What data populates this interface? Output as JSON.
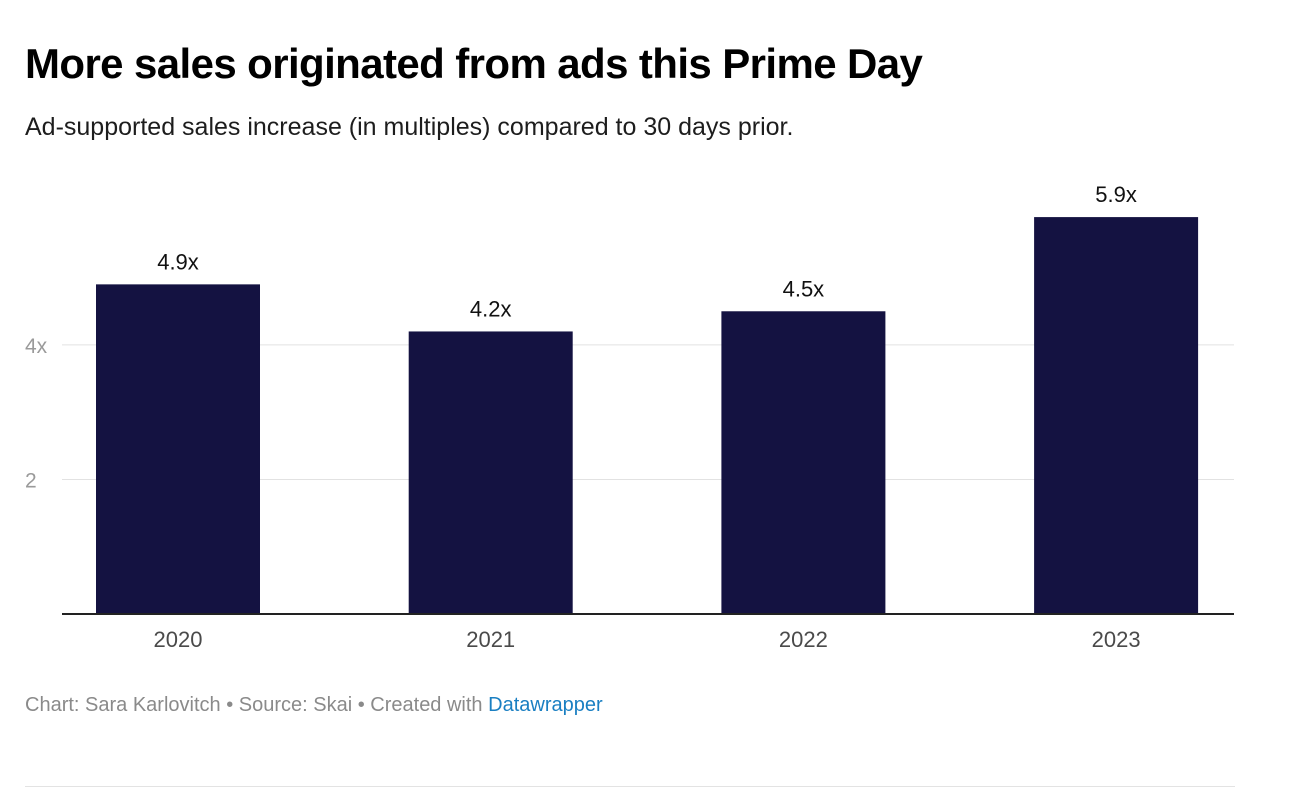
{
  "colors": {
    "bar": "#141241",
    "grid": "#e2e2e2",
    "axis": "#222222",
    "link": "#1a7fc2"
  },
  "footer": {
    "chart_by": "Chart: Sara Karlovitch",
    "separator1": " • ",
    "source": "Source: Skai",
    "separator2": " • ",
    "created_with": "Created with ",
    "datawrapper": "Datawrapper"
  },
  "chart_data": {
    "type": "bar",
    "title": "More sales originated from ads this Prime Day",
    "subtitle": "Ad-supported sales increase (in multiples) compared to 30 days prior.",
    "xlabel": "",
    "ylabel": "",
    "categories": [
      "2020",
      "2021",
      "2022",
      "2023"
    ],
    "values": [
      4.9,
      4.2,
      4.5,
      5.9
    ],
    "data_labels": [
      "4.9x",
      "4.2x",
      "4.5x",
      "5.9x"
    ],
    "y_ticks": [
      {
        "value": 2,
        "label": "2"
      },
      {
        "value": 4,
        "label": "4x"
      }
    ],
    "ylim": [
      0,
      6.6
    ],
    "grid": true,
    "legend": "none"
  }
}
